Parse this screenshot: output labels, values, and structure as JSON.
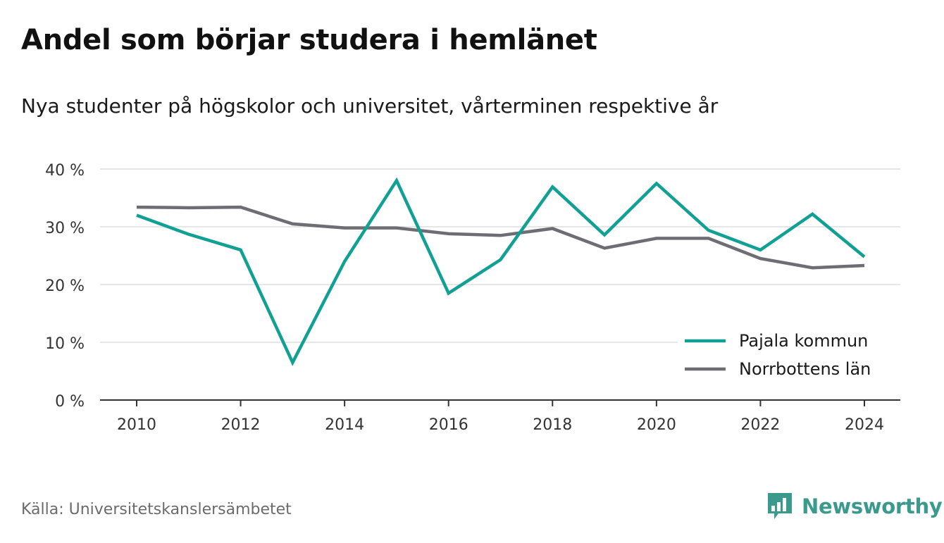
{
  "header": {
    "title": "Andel som börjar studera i hemlänet",
    "subtitle": "Nya studenter på högskolor och universitet, vårterminen respektive år"
  },
  "footer": {
    "source": "Källa: Universitetskanslersämbetet",
    "brand": "Newsworthy",
    "brand_icon": "bar-chart-speech-bubble-icon",
    "brand_color": "#3a9a8c"
  },
  "chart_data": {
    "type": "line",
    "x": [
      2010,
      2011,
      2012,
      2013,
      2014,
      2015,
      2016,
      2017,
      2018,
      2019,
      2020,
      2021,
      2022,
      2023,
      2024
    ],
    "x_ticks": [
      2010,
      2012,
      2014,
      2016,
      2018,
      2020,
      2022,
      2024
    ],
    "x_tick_labels": [
      "2010",
      "2012",
      "2014",
      "2016",
      "2018",
      "2020",
      "2022",
      "2024"
    ],
    "y_ticks": [
      0,
      10,
      20,
      30,
      40
    ],
    "y_tick_labels": [
      "0 %",
      "10 %",
      "20 %",
      "30 %",
      "40 %"
    ],
    "ylim": [
      0,
      40
    ],
    "xlim": [
      2010,
      2024
    ],
    "grid": true,
    "legend_position": "bottom-right",
    "series": [
      {
        "name": "Pajala kommun",
        "color": "#11a194",
        "values": [
          32.0,
          28.7,
          26.0,
          6.5,
          24.0,
          38.0,
          18.5,
          24.3,
          36.9,
          28.6,
          37.5,
          29.4,
          26.0,
          32.2,
          24.8
        ]
      },
      {
        "name": "Norrbottens län",
        "color": "#6e6d74",
        "values": [
          33.4,
          33.3,
          33.4,
          30.5,
          29.8,
          29.8,
          28.8,
          28.5,
          29.7,
          26.3,
          28.0,
          28.0,
          24.5,
          22.9,
          23.3
        ]
      }
    ]
  }
}
